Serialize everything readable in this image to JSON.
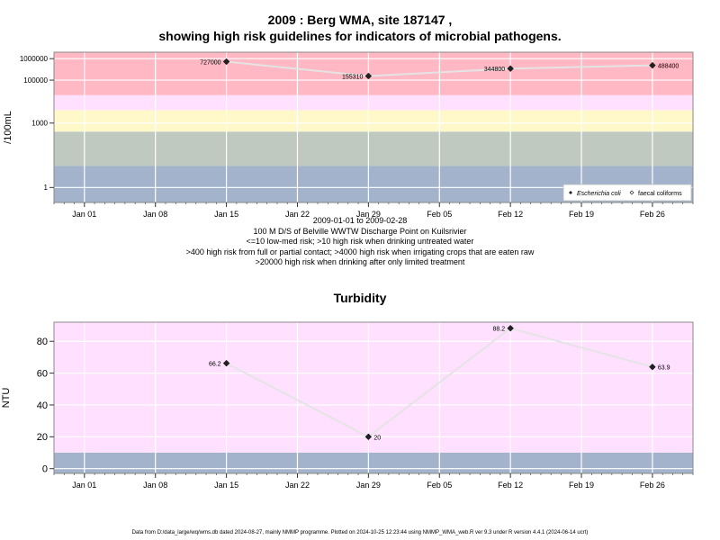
{
  "chart_data": [
    {
      "type": "line",
      "title_line1": "2009 : Berg WMA, site 187147 ,",
      "title_line2": "showing high risk guidelines for indicators of microbial pathogens.",
      "ylabel": "/100mL",
      "yscale": "log",
      "ylim": [
        0.2,
        2000000
      ],
      "yticks": [
        1,
        1000,
        100000,
        1000000
      ],
      "yticklabels": [
        "1",
        "1000",
        "100000",
        "1000000"
      ],
      "xlim": [
        "2008-12-29",
        "2009-03-02"
      ],
      "xticks": [
        "2009-01-01",
        "2009-01-08",
        "2009-01-15",
        "2009-01-22",
        "2009-01-29",
        "2009-02-05",
        "2009-02-12",
        "2009-02-19",
        "2009-02-26"
      ],
      "xticklabels": [
        "Jan 01",
        "Jan 08",
        "Jan 15",
        "Jan 22",
        "Jan 29",
        "Feb 05",
        "Feb 12",
        "Feb 19",
        "Feb 26"
      ],
      "bands": [
        {
          "from": 0.2,
          "to": 10,
          "color": "#a3b3cb"
        },
        {
          "from": 10,
          "to": 400,
          "color": "#bfc9c0"
        },
        {
          "from": 400,
          "to": 4000,
          "color": "#fff8c8"
        },
        {
          "from": 4000,
          "to": 20000,
          "color": "#ffe0ff"
        },
        {
          "from": 20000,
          "to": 2000000,
          "color": "#ffb8c4"
        }
      ],
      "series": [
        {
          "name": "Escherichia coli",
          "marker": "filled-diamond",
          "x": [
            "2009-01-15",
            "2009-01-29",
            "2009-02-12",
            "2009-02-26"
          ],
          "values": [
            727000,
            155310,
            344800,
            488400
          ],
          "labels": [
            "727000",
            "155310",
            "344800",
            "488400"
          ]
        }
      ],
      "legend": {
        "placement": "bottom-right",
        "items": [
          "Escherichia coli",
          "faecal coliforms"
        ]
      },
      "caption": [
        "2009-01-01 to 2009-02-28",
        "100 M D/S of Belville WWTW Discharge Point on Kuilsrivier",
        "<=10 low-med risk; >10 high risk when drinking untreated water",
        ">400 high risk from full or partial contact; >4000 high risk when irrigating crops that are eaten raw",
        ">20000 high risk when drinking after only limited treatment"
      ]
    },
    {
      "type": "line",
      "title": "Turbidity",
      "ylabel": "NTU",
      "yscale": "linear",
      "ylim": [
        -3,
        92
      ],
      "yticks": [
        0,
        20,
        40,
        60,
        80
      ],
      "yticklabels": [
        "0",
        "20",
        "40",
        "60",
        "80"
      ],
      "xlim": [
        "2008-12-29",
        "2009-03-02"
      ],
      "xticks": [
        "2009-01-01",
        "2009-01-08",
        "2009-01-15",
        "2009-01-22",
        "2009-01-29",
        "2009-02-05",
        "2009-02-12",
        "2009-02-19",
        "2009-02-26"
      ],
      "xticklabels": [
        "Jan 01",
        "Jan 08",
        "Jan 15",
        "Jan 22",
        "Jan 29",
        "Feb 05",
        "Feb 12",
        "Feb 19",
        "Feb 26"
      ],
      "bands": [
        {
          "from": -3,
          "to": 10,
          "color": "#a3b3cb"
        },
        {
          "from": 10,
          "to": 92,
          "color": "#ffe0ff"
        }
      ],
      "series": [
        {
          "marker": "filled-diamond",
          "x": [
            "2009-01-15",
            "2009-01-29",
            "2009-02-12",
            "2009-02-26"
          ],
          "values": [
            66.2,
            20,
            88.2,
            63.9
          ],
          "labels": [
            "66.2",
            "20",
            "88.2",
            "63.9"
          ]
        }
      ]
    }
  ],
  "footer": "Data from D:/data_large/wq/wms.db dated 2024-08-27, mainly NMMP programme. Plotted on 2024-10-25 12:23:44 using NMMP_WMA_web.R ver 9.3 under R version 4.4.1 (2024-06-14 ucrt)"
}
